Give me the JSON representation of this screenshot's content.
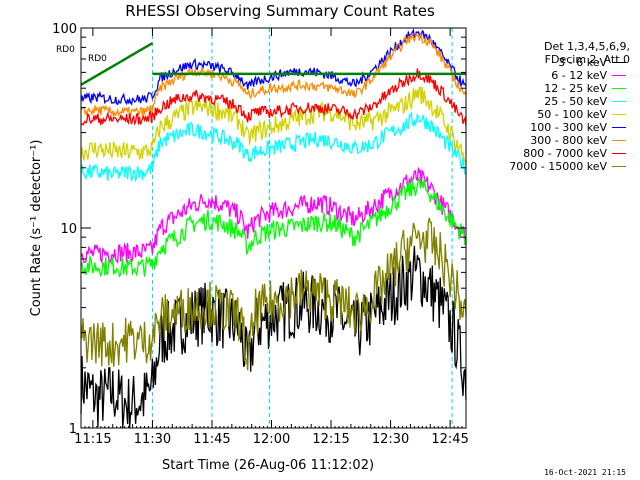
{
  "chart_data": {
    "type": "line",
    "title": "RHESSI Observing Summary Count Rates",
    "xlabel": "Start Time (26-Aug-06 11:12:02)",
    "ylabel": "Count Rate (s⁻¹ detector⁻¹)",
    "y_scale": "log",
    "ylim": [
      1,
      100
    ],
    "xlim_minutes_after_start": [
      0,
      97
    ],
    "x_ticks": [
      {
        "label": "11:15",
        "minutes": 3
      },
      {
        "label": "11:30",
        "minutes": 18
      },
      {
        "label": "11:45",
        "minutes": 33
      },
      {
        "label": "12:00",
        "minutes": 48
      },
      {
        "label": "12:15",
        "minutes": 63
      },
      {
        "label": "12:30",
        "minutes": 78
      },
      {
        "label": "12:45",
        "minutes": 93
      }
    ],
    "y_ticks": [
      {
        "label": "1",
        "value": 1
      },
      {
        "label": "10",
        "value": 10
      },
      {
        "label": "100",
        "value": 100
      }
    ],
    "header_lines": [
      "Det 1,3,4,5,6,9,",
      "FDecim 2, Att 0"
    ],
    "x": [
      0,
      4,
      8,
      12,
      16,
      18,
      20,
      24,
      28,
      32,
      36,
      40,
      42,
      44,
      48,
      52,
      56,
      60,
      64,
      67,
      69,
      73,
      78,
      82,
      85,
      88,
      91,
      94,
      97
    ],
    "series": [
      {
        "name": "3 - 6 keV",
        "color": "#000000",
        "values": [
          1.7,
          1.4,
          1.5,
          1.3,
          1.4,
          1.6,
          2.8,
          3.2,
          3.6,
          3.8,
          3.5,
          3.2,
          2.0,
          3.2,
          3.6,
          3.9,
          4.2,
          4.0,
          3.8,
          3.3,
          3.0,
          3.5,
          4.5,
          5.5,
          6.0,
          5.0,
          4.0,
          3.0,
          1.8
        ]
      },
      {
        "name": "6 - 12 keV",
        "color": "#ff00ff",
        "values": [
          7.5,
          7.4,
          7.6,
          7.5,
          7.6,
          7.8,
          10.0,
          11.5,
          13.0,
          14.0,
          13.0,
          11.5,
          9.5,
          11.0,
          12.0,
          12.5,
          13.0,
          13.5,
          12.5,
          11.5,
          11.0,
          12.5,
          15.0,
          17.0,
          18.0,
          16.0,
          13.0,
          11.0,
          9.0
        ]
      },
      {
        "name": "12 - 25 keV",
        "color": "#00ff00",
        "values": [
          6.5,
          6.4,
          6.5,
          6.3,
          6.4,
          6.6,
          8.0,
          9.0,
          10.5,
          11.0,
          10.5,
          9.5,
          8.0,
          9.0,
          9.8,
          10.0,
          10.3,
          10.8,
          10.5,
          9.5,
          9.0,
          10.5,
          13.0,
          15.0,
          16.5,
          15.0,
          12.5,
          10.5,
          9.0
        ]
      },
      {
        "name": "25 - 50 keV",
        "color": "#00ffff",
        "values": [
          19,
          19,
          18.5,
          19,
          19,
          20,
          27,
          29,
          31,
          30,
          28,
          26,
          23,
          24,
          25,
          26,
          27,
          28,
          27,
          26,
          25,
          26,
          30,
          33,
          36,
          33,
          28,
          24,
          20
        ]
      },
      {
        "name": "50 - 100 keV",
        "color": "#d2d200",
        "values": [
          24,
          25,
          24,
          24,
          24,
          25,
          32,
          36,
          40,
          40,
          38,
          34,
          28,
          30,
          32,
          34,
          36,
          38,
          38,
          35,
          33,
          34,
          38,
          42,
          48,
          42,
          35,
          28,
          22
        ]
      },
      {
        "name": "100 - 300 keV",
        "color": "#0000ff",
        "values": [
          44,
          45,
          44,
          44,
          44,
          46,
          56,
          62,
          66,
          65,
          62,
          57,
          50,
          54,
          57,
          60,
          61,
          60,
          57,
          54,
          52,
          60,
          76,
          90,
          95,
          88,
          73,
          60,
          50
        ]
      },
      {
        "name": "300 - 800 keV",
        "color": "#ff8c00",
        "values": [
          38,
          39,
          38,
          38,
          38,
          40,
          50,
          56,
          61,
          60,
          57,
          52,
          46,
          48,
          50,
          51,
          52,
          51,
          50,
          48,
          46,
          55,
          72,
          87,
          92,
          85,
          70,
          56,
          45
        ]
      },
      {
        "name": "800 - 7000 keV",
        "color": "#ff0000",
        "values": [
          35,
          35,
          35,
          35,
          35,
          36,
          40,
          44,
          46,
          45,
          43,
          40,
          36,
          38,
          38,
          39,
          40,
          40,
          39,
          38,
          37,
          40,
          48,
          55,
          60,
          55,
          48,
          40,
          33
        ]
      },
      {
        "name": "7000 - 15000 keV",
        "color": "#808000",
        "values": [
          2.8,
          2.7,
          2.6,
          2.8,
          2.7,
          2.9,
          3.5,
          3.8,
          4.0,
          4.2,
          3.9,
          3.6,
          2.2,
          3.8,
          4.2,
          4.6,
          4.9,
          4.7,
          4.4,
          4.0,
          3.7,
          4.3,
          6.0,
          8.0,
          9.0,
          8.5,
          7.0,
          5.2,
          3.5
        ]
      }
    ],
    "annotations": [
      {
        "text": "RD0",
        "color": "#00a000"
      },
      {
        "text": "RD0",
        "color": "#00a000"
      }
    ],
    "footer": "16-Oct-2021 21:15"
  }
}
